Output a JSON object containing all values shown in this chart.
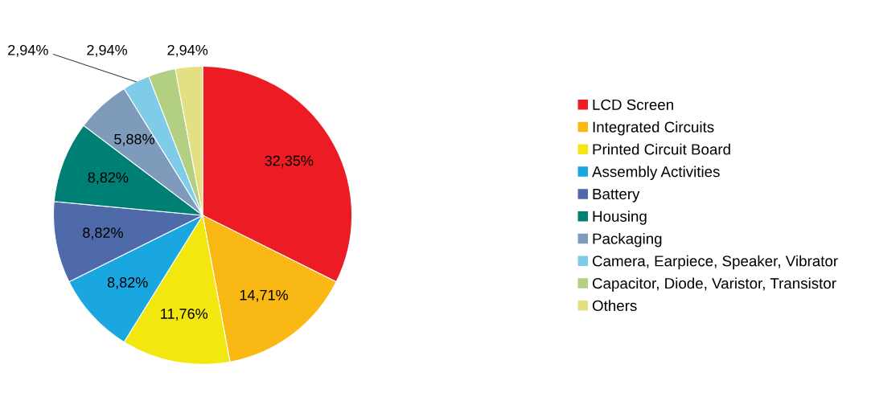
{
  "chart_data": {
    "type": "pie",
    "categories": [
      "LCD Screen",
      "Integrated Circuits",
      "Printed Circuit Board",
      "Assembly Activities",
      "Battery",
      "Housing",
      "Packaging",
      "Camera, Earpiece, Speaker, Vibrator",
      "Capacitor, Diode, Varistor, Transistor",
      "Others"
    ],
    "values": [
      32.35,
      14.71,
      11.76,
      8.82,
      8.82,
      8.82,
      5.88,
      2.94,
      2.94,
      2.94
    ],
    "value_labels": [
      "32,35%",
      "14,71%",
      "11,76%",
      "8,82%",
      "8,82%",
      "8,82%",
      "5,88%",
      "2,94%",
      "2,94%",
      "2,94%"
    ],
    "colors": [
      "#ed1c24",
      "#f9b813",
      "#f2e70f",
      "#1aa7df",
      "#4f6aa8",
      "#008075",
      "#7f9bbb",
      "#7fcce8",
      "#b3cf82",
      "#e3e083"
    ],
    "legend": "right"
  }
}
